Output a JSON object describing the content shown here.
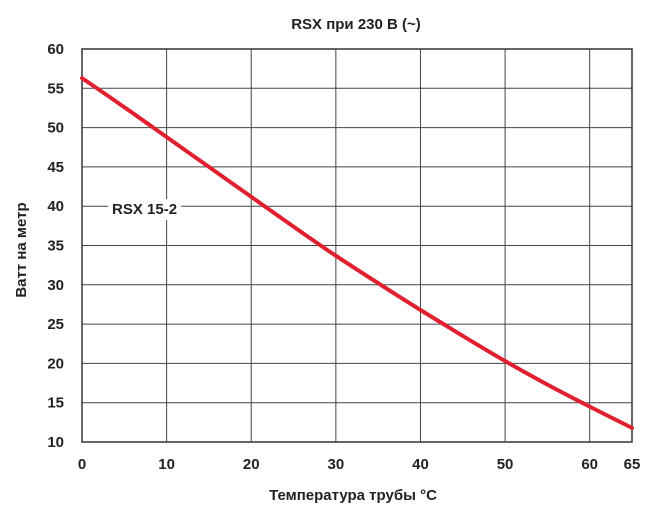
{
  "chart_data": {
    "type": "line",
    "title": "RSX при 230 В (~)",
    "xlabel": "Температура трубы °C",
    "ylabel": "Ватт на метр",
    "xlim": [
      0,
      65
    ],
    "ylim": [
      10,
      60
    ],
    "x_ticks": [
      0,
      10,
      20,
      30,
      40,
      50,
      60,
      65
    ],
    "y_ticks": [
      10,
      15,
      20,
      25,
      30,
      35,
      40,
      45,
      50,
      55,
      60
    ],
    "x_tick_labels": [
      "0",
      "10",
      "20",
      "30",
      "40",
      "50",
      "60",
      "65"
    ],
    "y_tick_labels": [
      "10",
      "15",
      "20",
      "25",
      "30",
      "35",
      "40",
      "45",
      "50",
      "55",
      "60"
    ],
    "grid": true,
    "series": [
      {
        "name": "RSX 15-2",
        "color": "#e0202f",
        "x": [
          0,
          5,
          10,
          15,
          20,
          25,
          30,
          35,
          40,
          45,
          50,
          55,
          60,
          65
        ],
        "y": [
          56.3,
          52.6,
          48.8,
          45.0,
          41.2,
          37.4,
          33.7,
          30.2,
          26.8,
          23.5,
          20.3,
          17.3,
          14.5,
          11.8
        ]
      }
    ],
    "annotations": [
      {
        "text": "RSX 15-2",
        "series": 0
      }
    ]
  }
}
